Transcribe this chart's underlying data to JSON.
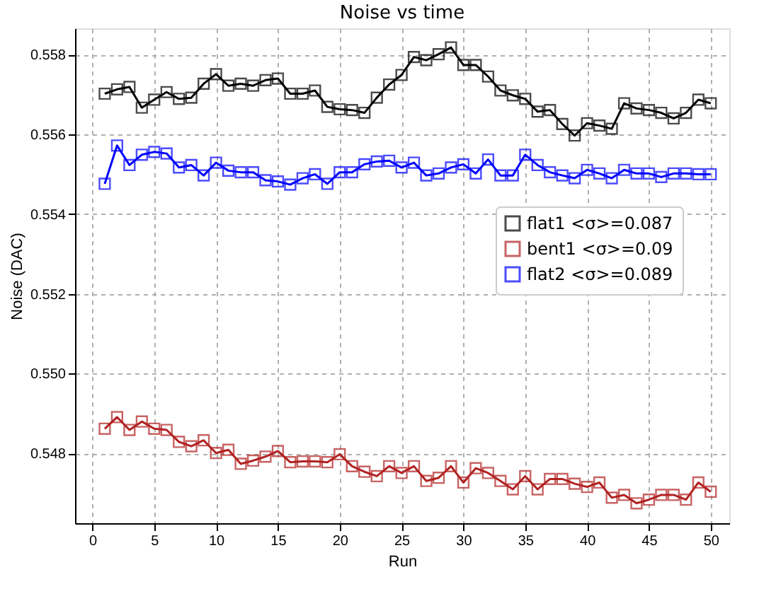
{
  "chart_data": {
    "type": "line",
    "title": "Noise vs time",
    "xlabel": "Run",
    "ylabel": "Noise (DAC)",
    "x": [
      1,
      2,
      3,
      4,
      5,
      6,
      7,
      8,
      9,
      10,
      11,
      12,
      13,
      14,
      15,
      16,
      17,
      18,
      19,
      20,
      21,
      22,
      23,
      24,
      25,
      26,
      27,
      28,
      29,
      30,
      31,
      32,
      33,
      34,
      35,
      36,
      37,
      38,
      39,
      40,
      41,
      42,
      43,
      44,
      45,
      46,
      47,
      48,
      49,
      50
    ],
    "series": [
      {
        "name": "flat1 <σ>=0.087",
        "color": "#000000",
        "values": [
          0.55702,
          0.55713,
          0.55719,
          0.55667,
          0.55687,
          0.55706,
          0.55689,
          0.55692,
          0.55727,
          0.55751,
          0.55722,
          0.55727,
          0.55722,
          0.55736,
          0.5574,
          0.55702,
          0.55702,
          0.5571,
          0.55669,
          0.55663,
          0.55661,
          0.55654,
          0.55692,
          0.55725,
          0.55749,
          0.55794,
          0.55786,
          0.55801,
          0.55818,
          0.55774,
          0.55774,
          0.55745,
          0.5571,
          0.55698,
          0.55689,
          0.55657,
          0.55661,
          0.55626,
          0.55597,
          0.55628,
          0.55622,
          0.55614,
          0.55678,
          0.55665,
          0.55661,
          0.55654,
          0.5564,
          0.55654,
          0.55687,
          0.55678
        ]
      },
      {
        "name": "bent1 <σ>=0.09",
        "color": "#b22222",
        "values": [
          0.54862,
          0.54891,
          0.54859,
          0.5488,
          0.54862,
          0.54859,
          0.54829,
          0.54818,
          0.54833,
          0.54801,
          0.54809,
          0.54774,
          0.54782,
          0.54792,
          0.54806,
          0.54778,
          0.5478,
          0.5478,
          0.54778,
          0.54798,
          0.54768,
          0.54754,
          0.54743,
          0.54768,
          0.54751,
          0.54768,
          0.54731,
          0.54739,
          0.54768,
          0.54727,
          0.54763,
          0.54751,
          0.54731,
          0.5471,
          0.54743,
          0.5471,
          0.54736,
          0.54736,
          0.54724,
          0.54716,
          0.54727,
          0.54689,
          0.54696,
          0.54675,
          0.54684,
          0.54696,
          0.54696,
          0.54684,
          0.54727,
          0.54704
        ]
      },
      {
        "name": "flat2 <σ>=0.089",
        "color": "#0000ff",
        "values": [
          0.55476,
          0.55572,
          0.55523,
          0.55549,
          0.55556,
          0.55552,
          0.55517,
          0.55523,
          0.55497,
          0.55529,
          0.55509,
          0.55505,
          0.55505,
          0.55485,
          0.55482,
          0.55474,
          0.5549,
          0.555,
          0.55476,
          0.55505,
          0.55505,
          0.55525,
          0.55532,
          0.55534,
          0.55517,
          0.55529,
          0.55497,
          0.55502,
          0.55517,
          0.55525,
          0.55502,
          0.55537,
          0.55497,
          0.55497,
          0.55549,
          0.55523,
          0.55505,
          0.55497,
          0.5549,
          0.55511,
          0.55502,
          0.5549,
          0.55511,
          0.55502,
          0.55502,
          0.55493,
          0.55502,
          0.55502,
          0.555,
          0.555
        ]
      }
    ],
    "xlim": [
      -1.4,
      51.5
    ],
    "ylim": [
      0.54625,
      0.55866
    ],
    "xticks": [
      0,
      5,
      10,
      15,
      20,
      25,
      30,
      35,
      40,
      45,
      50
    ],
    "yticks": [
      0.548,
      {
        "value": 0.55,
        "label": "0.550"
      },
      0.552,
      0.554,
      0.556,
      0.558
    ],
    "grid": true,
    "legend": "right",
    "marker": "square",
    "line_style": "solid"
  }
}
